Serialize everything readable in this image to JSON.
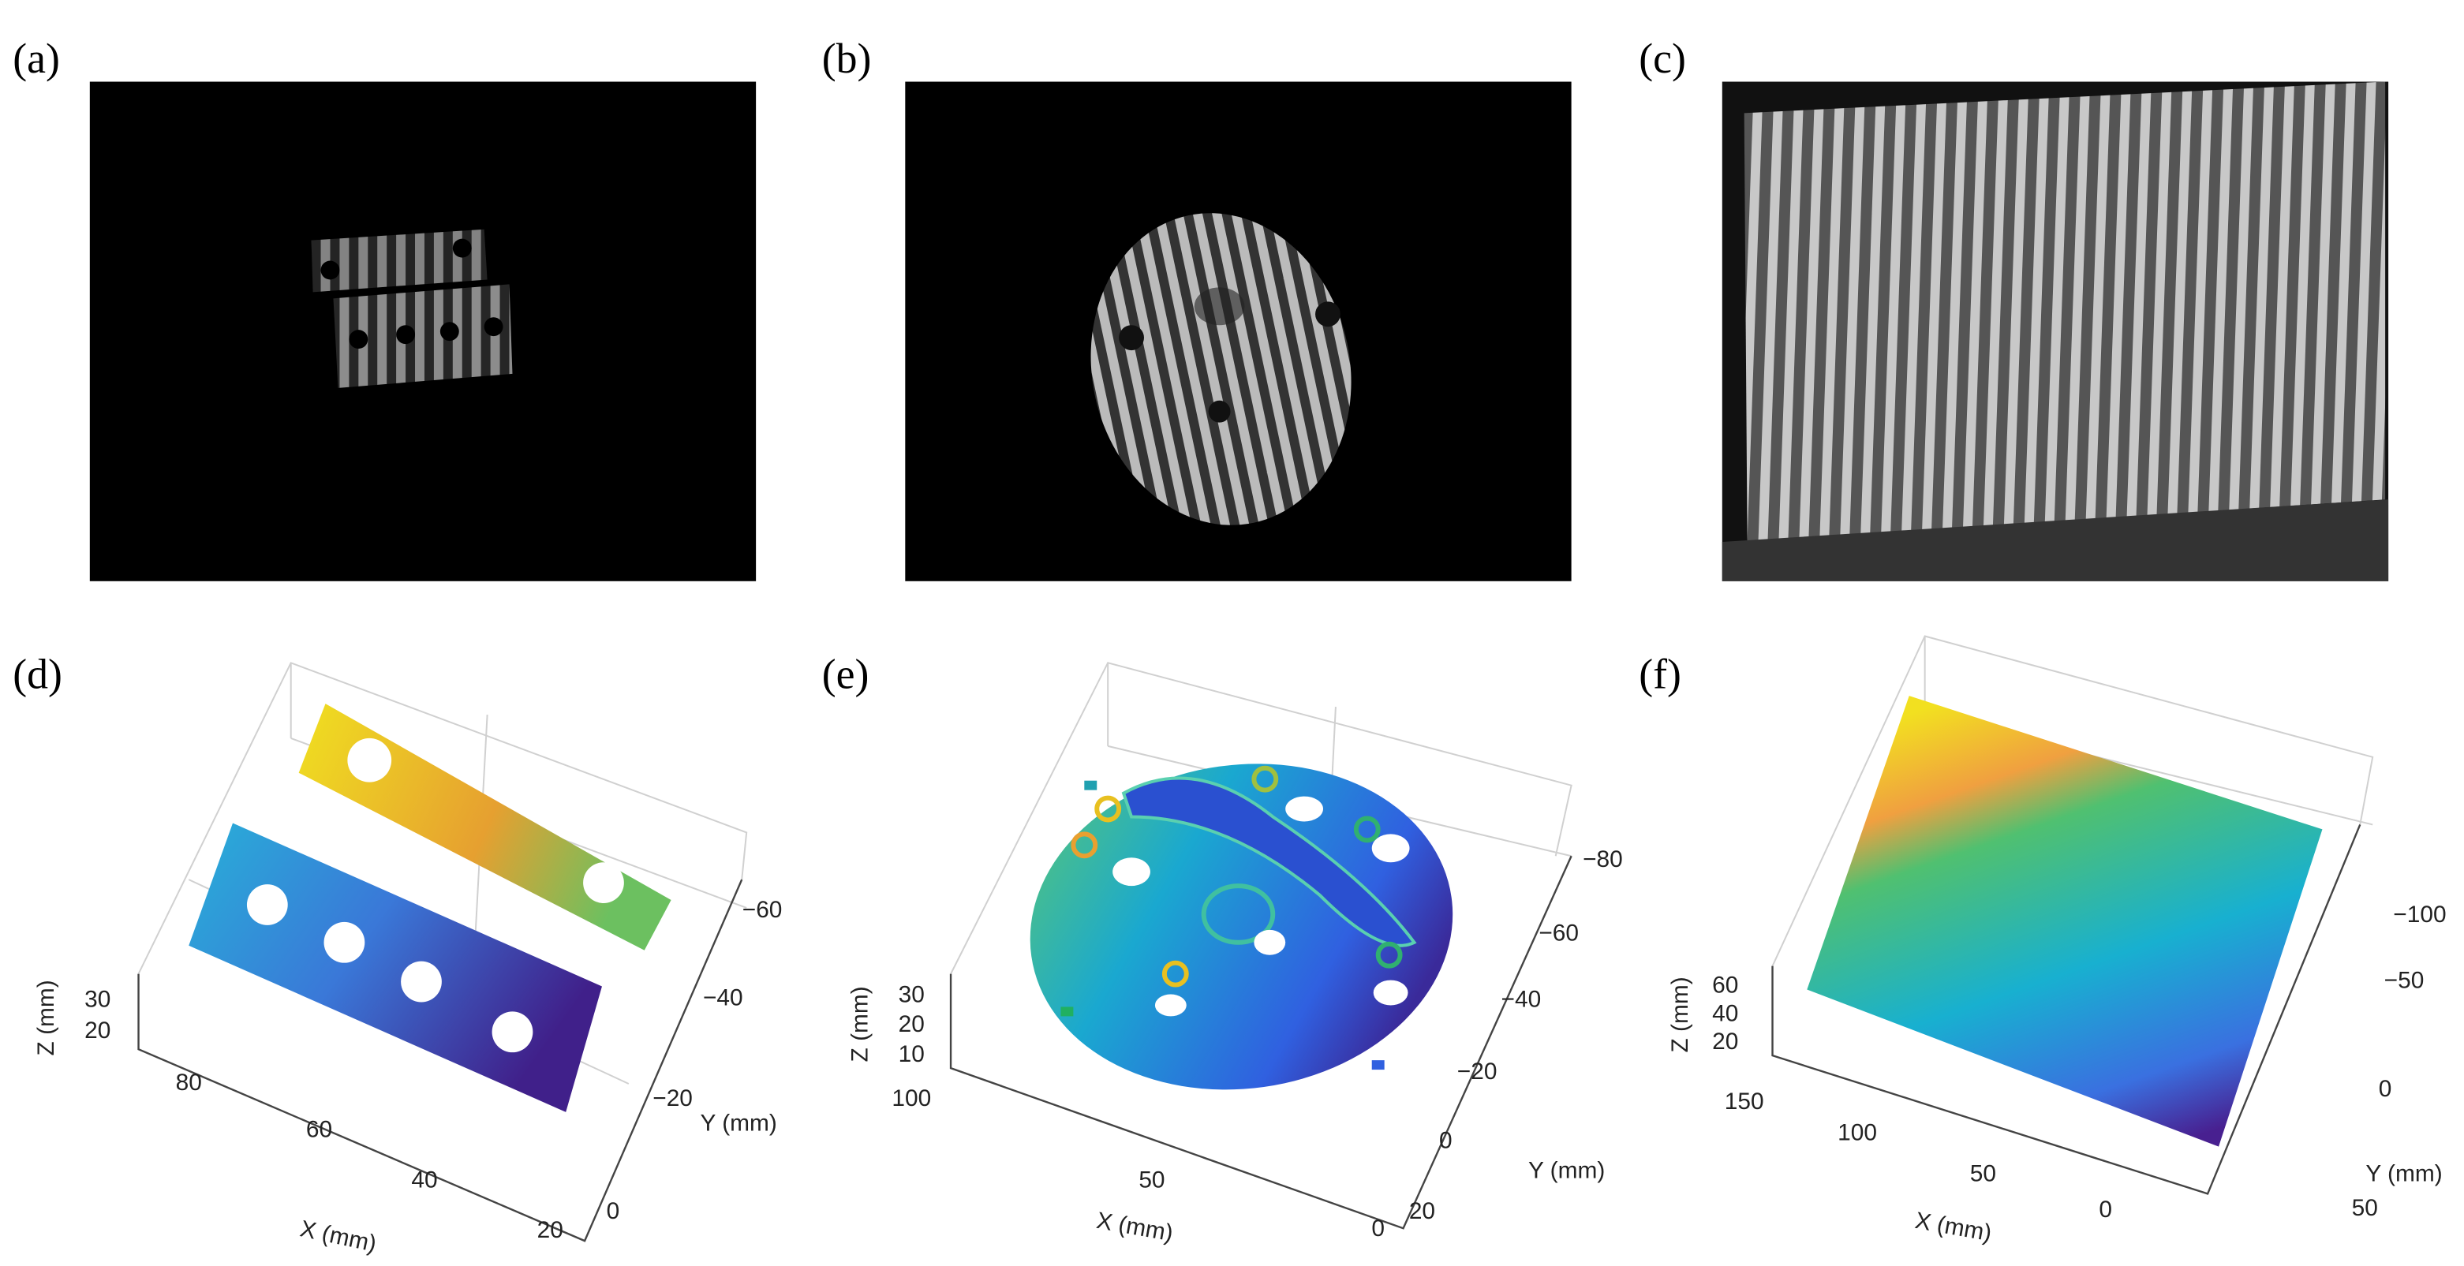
{
  "panels": [
    {
      "label": "(a)"
    },
    {
      "label": "(b)"
    },
    {
      "label": "(c)"
    },
    {
      "label": "(d)",
      "axes": {
        "x_label": "X (mm)",
        "y_label": "Y (mm)",
        "z_label": "Z (mm)",
        "x_ticks": [
          "80",
          "60",
          "40",
          "20"
        ],
        "y_ticks": [
          "−60",
          "−40",
          "−20",
          "0"
        ],
        "z_ticks": [
          "30",
          "20"
        ]
      }
    },
    {
      "label": "(e)",
      "axes": {
        "x_label": "X (mm)",
        "y_label": "Y (mm)",
        "z_label": "Z (mm)",
        "x_ticks": [
          "100",
          "50",
          "0"
        ],
        "y_ticks": [
          "−80",
          "−60",
          "−40",
          "−20",
          "0",
          "20"
        ],
        "z_ticks": [
          "30",
          "20",
          "10"
        ]
      }
    },
    {
      "label": "(f)",
      "axes": {
        "x_label": "X (mm)",
        "y_label": "Y (mm)",
        "z_label": "Z (mm)",
        "x_ticks": [
          "150",
          "100",
          "50",
          "0"
        ],
        "y_ticks": [
          "−100",
          "−50",
          "0",
          "50"
        ],
        "z_ticks": [
          "60",
          "40",
          "20"
        ]
      }
    }
  ]
}
